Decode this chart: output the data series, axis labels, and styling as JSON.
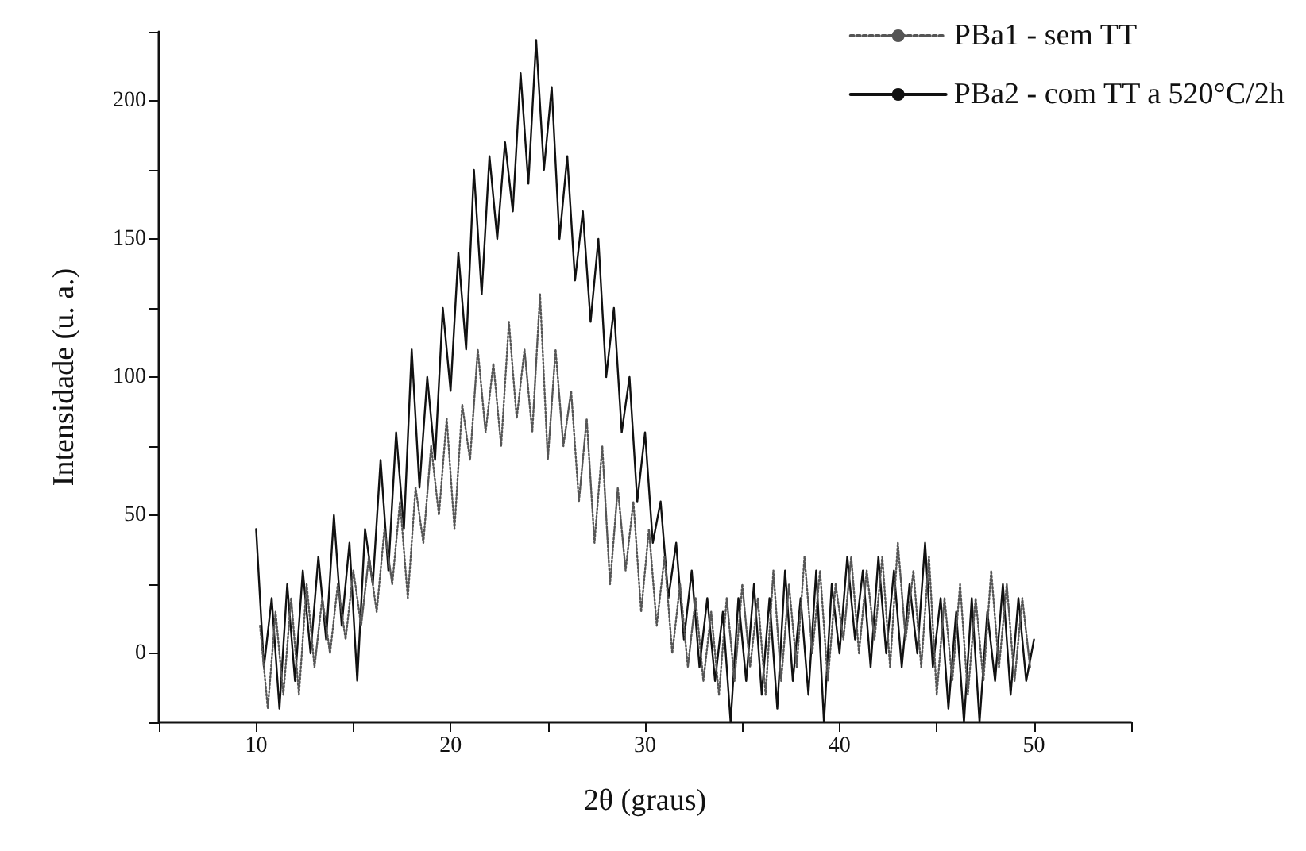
{
  "chart_data": {
    "type": "line",
    "xlabel": "2θ (graus)",
    "ylabel": "Intensidade (u. a.)",
    "xlim": [
      5,
      55
    ],
    "xticks": [
      {
        "value": 5,
        "label": null
      },
      10,
      {
        "value": 15,
        "label": null
      },
      20,
      {
        "value": 25,
        "label": null
      },
      30,
      {
        "value": 35,
        "label": null
      },
      40,
      {
        "value": 45,
        "label": null
      },
      50,
      {
        "value": 55,
        "label": null
      }
    ],
    "ylim": [
      -25,
      225
    ],
    "yticks": [
      {
        "value": -25,
        "label": null
      },
      0,
      {
        "value": 25,
        "label": null
      },
      50,
      {
        "value": 75,
        "label": null
      },
      100,
      {
        "value": 125,
        "label": null
      },
      150,
      {
        "value": 175,
        "label": null
      },
      200,
      {
        "value": 225,
        "label": null
      }
    ],
    "grid": false,
    "legend": "top right",
    "marker": "none",
    "series": [
      {
        "name": "PBa2 - com TT a 520°C/2h",
        "color": "#111111",
        "line_style": "solid",
        "x": [
          10,
          10.4,
          10.8,
          11.2,
          11.6,
          12,
          12.4,
          12.8,
          13.2,
          13.6,
          14,
          14.4,
          14.8,
          15.2,
          15.6,
          16,
          16.4,
          16.8,
          17.2,
          17.6,
          18,
          18.4,
          18.8,
          19.2,
          19.6,
          20,
          20.4,
          20.8,
          21.2,
          21.6,
          22,
          22.4,
          22.8,
          23.2,
          23.6,
          24,
          24.4,
          24.8,
          25.2,
          25.6,
          26,
          26.4,
          26.8,
          27.2,
          27.6,
          28,
          28.4,
          28.8,
          29.2,
          29.6,
          30,
          30.4,
          30.8,
          31.2,
          31.6,
          32,
          32.4,
          32.8,
          33.2,
          33.6,
          34,
          34.4,
          34.8,
          35.2,
          35.6,
          36,
          36.4,
          36.8,
          37.2,
          37.6,
          38,
          38.4,
          38.8,
          39.2,
          39.6,
          40,
          40.4,
          40.8,
          41.2,
          41.6,
          42,
          42.4,
          42.8,
          43.2,
          43.6,
          44,
          44.4,
          44.8,
          45.2,
          45.6,
          46,
          46.4,
          46.8,
          47.2,
          47.6,
          48,
          48.4,
          48.8,
          49.2,
          49.6,
          50
        ],
        "values": [
          45,
          -5,
          20,
          -20,
          25,
          -10,
          30,
          0,
          35,
          5,
          50,
          10,
          40,
          -10,
          45,
          25,
          70,
          30,
          80,
          45,
          110,
          60,
          100,
          70,
          125,
          95,
          145,
          110,
          175,
          130,
          180,
          150,
          185,
          160,
          210,
          170,
          222,
          175,
          205,
          150,
          180,
          135,
          160,
          120,
          150,
          100,
          125,
          80,
          100,
          55,
          80,
          40,
          55,
          20,
          40,
          5,
          30,
          -5,
          20,
          -10,
          15,
          -25,
          20,
          -10,
          25,
          -15,
          20,
          -20,
          30,
          -10,
          20,
          -15,
          30,
          -25,
          25,
          0,
          35,
          5,
          30,
          -5,
          35,
          0,
          30,
          -5,
          25,
          0,
          40,
          -5,
          20,
          -20,
          15,
          -25,
          20,
          -25,
          15,
          -10,
          25,
          -15,
          20,
          -10,
          5
        ]
      },
      {
        "name": "PBa1 - sem TT",
        "color": "#555555",
        "line_style": "dotted",
        "x": [
          10.2,
          10.6,
          11,
          11.4,
          11.8,
          12.2,
          12.6,
          13,
          13.4,
          13.8,
          14.2,
          14.6,
          15,
          15.4,
          15.8,
          16.2,
          16.6,
          17,
          17.4,
          17.8,
          18.2,
          18.6,
          19,
          19.4,
          19.8,
          20.2,
          20.6,
          21,
          21.4,
          21.8,
          22.2,
          22.6,
          23,
          23.4,
          23.8,
          24.2,
          24.6,
          25,
          25.4,
          25.8,
          26.2,
          26.6,
          27,
          27.4,
          27.8,
          28.2,
          28.6,
          29,
          29.4,
          29.8,
          30.2,
          30.6,
          31,
          31.4,
          31.8,
          32.2,
          32.6,
          33,
          33.4,
          33.8,
          34.2,
          34.6,
          35,
          35.4,
          35.8,
          36.2,
          36.6,
          37,
          37.4,
          37.8,
          38.2,
          38.6,
          39,
          39.4,
          39.8,
          40.2,
          40.6,
          41,
          41.4,
          41.8,
          42.2,
          42.6,
          43,
          43.4,
          43.8,
          44.2,
          44.6,
          45,
          45.4,
          45.8,
          46.2,
          46.6,
          47,
          47.4,
          47.8,
          48.2,
          48.6,
          49,
          49.4,
          49.8
        ],
        "values": [
          10,
          -20,
          15,
          -15,
          20,
          -15,
          25,
          -5,
          20,
          0,
          25,
          5,
          30,
          10,
          35,
          15,
          45,
          25,
          55,
          20,
          60,
          40,
          75,
          50,
          85,
          45,
          90,
          70,
          110,
          80,
          105,
          75,
          120,
          85,
          110,
          80,
          130,
          70,
          110,
          75,
          95,
          55,
          85,
          40,
          75,
          25,
          60,
          30,
          55,
          15,
          45,
          10,
          35,
          0,
          25,
          -5,
          20,
          -10,
          15,
          -15,
          20,
          -10,
          25,
          -5,
          20,
          -15,
          30,
          -10,
          25,
          -5,
          35,
          0,
          30,
          -10,
          25,
          5,
          35,
          0,
          30,
          5,
          35,
          -5,
          40,
          5,
          30,
          -5,
          35,
          -15,
          20,
          -10,
          25,
          -15,
          20,
          -10,
          30,
          -5,
          25,
          -10,
          20,
          -5
        ]
      }
    ]
  }
}
